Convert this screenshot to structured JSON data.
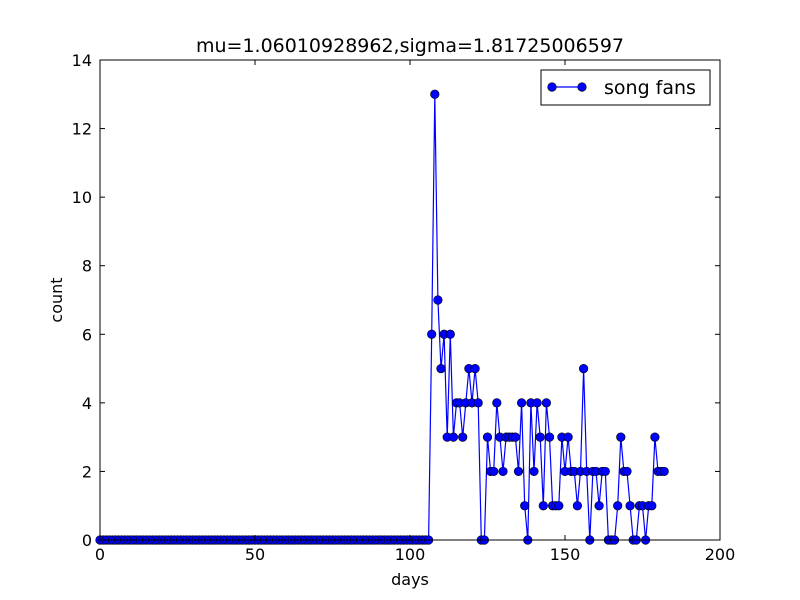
{
  "chart_data": {
    "type": "line",
    "title": "mu=1.06010928962,sigma=1.81725006597",
    "xlabel": "days",
    "ylabel": "count",
    "xlim": [
      0,
      200
    ],
    "ylim": [
      0,
      14
    ],
    "xticks": [
      0,
      50,
      100,
      150,
      200
    ],
    "yticks": [
      0,
      2,
      4,
      6,
      8,
      10,
      12,
      14
    ],
    "grid": false,
    "legend_position": "upper right",
    "line_color": "#0000ff",
    "series": [
      {
        "name": "song fans",
        "marker": "circle",
        "x": [
          0,
          1,
          2,
          3,
          4,
          5,
          6,
          7,
          8,
          9,
          10,
          11,
          12,
          13,
          14,
          15,
          16,
          17,
          18,
          19,
          20,
          21,
          22,
          23,
          24,
          25,
          26,
          27,
          28,
          29,
          30,
          31,
          32,
          33,
          34,
          35,
          36,
          37,
          38,
          39,
          40,
          41,
          42,
          43,
          44,
          45,
          46,
          47,
          48,
          49,
          50,
          51,
          52,
          53,
          54,
          55,
          56,
          57,
          58,
          59,
          60,
          61,
          62,
          63,
          64,
          65,
          66,
          67,
          68,
          69,
          70,
          71,
          72,
          73,
          74,
          75,
          76,
          77,
          78,
          79,
          80,
          81,
          82,
          83,
          84,
          85,
          86,
          87,
          88,
          89,
          90,
          91,
          92,
          93,
          94,
          95,
          96,
          97,
          98,
          99,
          100,
          101,
          102,
          103,
          104,
          105,
          106,
          107,
          108,
          109,
          110,
          111,
          112,
          113,
          114,
          115,
          116,
          117,
          118,
          119,
          120,
          121,
          122,
          123,
          124,
          125,
          126,
          127,
          128,
          129,
          130,
          131,
          132,
          133,
          134,
          135,
          136,
          137,
          138,
          139,
          140,
          141,
          142,
          143,
          144,
          145,
          146,
          147,
          148,
          149,
          150,
          151,
          152,
          153,
          154,
          155,
          156,
          157,
          158,
          159,
          160,
          161,
          162,
          163,
          164,
          165,
          166,
          167,
          168,
          169,
          170,
          171,
          172,
          173,
          174,
          175,
          176,
          177,
          178,
          179,
          180,
          181,
          182
        ],
        "y": [
          0,
          0,
          0,
          0,
          0,
          0,
          0,
          0,
          0,
          0,
          0,
          0,
          0,
          0,
          0,
          0,
          0,
          0,
          0,
          0,
          0,
          0,
          0,
          0,
          0,
          0,
          0,
          0,
          0,
          0,
          0,
          0,
          0,
          0,
          0,
          0,
          0,
          0,
          0,
          0,
          0,
          0,
          0,
          0,
          0,
          0,
          0,
          0,
          0,
          0,
          0,
          0,
          0,
          0,
          0,
          0,
          0,
          0,
          0,
          0,
          0,
          0,
          0,
          0,
          0,
          0,
          0,
          0,
          0,
          0,
          0,
          0,
          0,
          0,
          0,
          0,
          0,
          0,
          0,
          0,
          0,
          0,
          0,
          0,
          0,
          0,
          0,
          0,
          0,
          0,
          0,
          0,
          0,
          0,
          0,
          0,
          0,
          0,
          0,
          0,
          0,
          0,
          0,
          0,
          0,
          0,
          0,
          6,
          13,
          7,
          5,
          6,
          3,
          6,
          3,
          4,
          4,
          3,
          4,
          5,
          4,
          5,
          4,
          0,
          0,
          3,
          2,
          2,
          4,
          3,
          2,
          3,
          3,
          3,
          3,
          2,
          4,
          1,
          0,
          4,
          2,
          4,
          3,
          1,
          4,
          3,
          1,
          1,
          1,
          3,
          2,
          3,
          2,
          2,
          1,
          2,
          5,
          2,
          0,
          2,
          2,
          1,
          2,
          2,
          0,
          0,
          0,
          1,
          3,
          2,
          2,
          1,
          0,
          0,
          1,
          1,
          0,
          1,
          1,
          3,
          2,
          2,
          2
        ]
      }
    ]
  }
}
